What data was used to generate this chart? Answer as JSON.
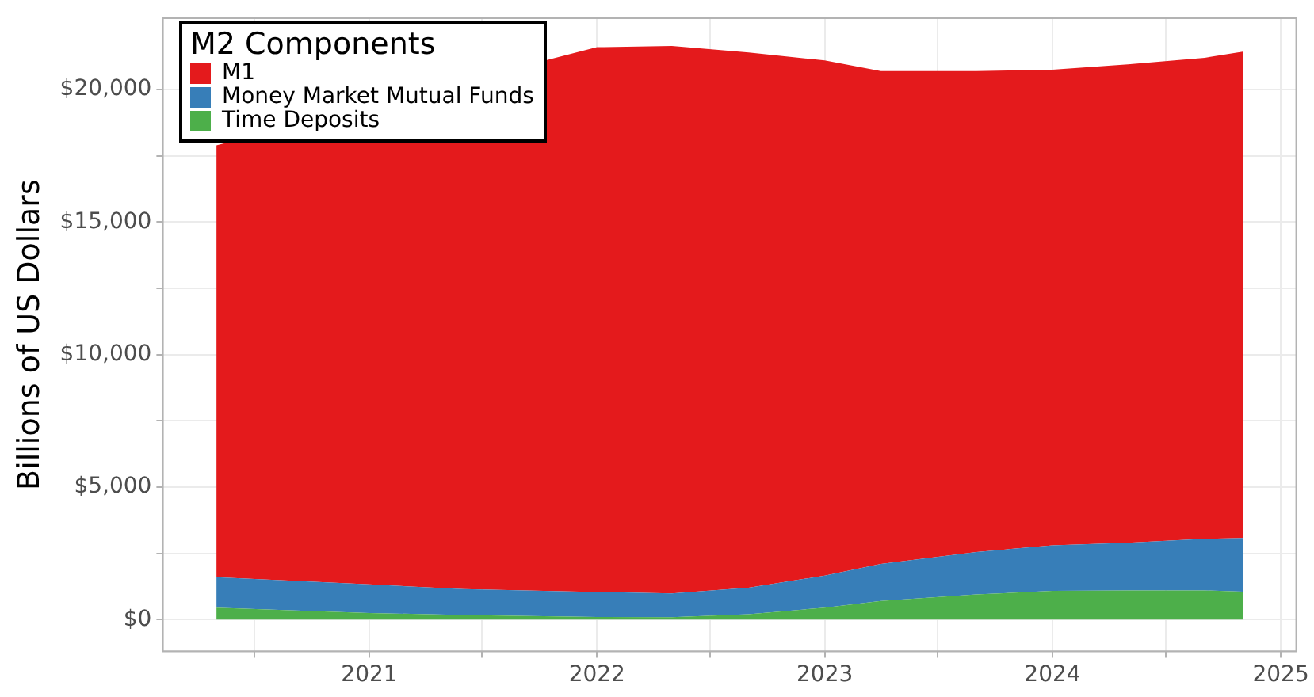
{
  "chart_data": {
    "type": "area",
    "stacked": true,
    "ylabel": "Billions of US Dollars",
    "legend_title": "M2 Components",
    "legend": "top left",
    "grid": true,
    "x": [
      "2020-05",
      "2021-01",
      "2021-06",
      "2022-01",
      "2022-05",
      "2022-09",
      "2023-01",
      "2023-04",
      "2023-09",
      "2024-01",
      "2024-05",
      "2024-09",
      "2024-11"
    ],
    "xlim": [
      "2020-02-05",
      "2025-01-26"
    ],
    "xticks": [
      {
        "value": "2020-07",
        "label": null
      },
      "2021",
      {
        "value": "2021-07",
        "label": null
      },
      "2022",
      {
        "value": "2022-07",
        "label": null
      },
      "2023",
      {
        "value": "2023-07",
        "label": null
      },
      "2024",
      {
        "value": "2024-07",
        "label": null
      },
      "2025"
    ],
    "ylim": [
      -1200,
      22700
    ],
    "yticks": [
      {
        "value": 0,
        "label": "$0"
      },
      {
        "value": 2500,
        "label": null
      },
      {
        "value": 5000,
        "label": "$5,000"
      },
      {
        "value": 7500,
        "label": null
      },
      {
        "value": 10000,
        "label": "$10,000"
      },
      {
        "value": 12500,
        "label": null
      },
      {
        "value": 15000,
        "label": "$15,000"
      },
      {
        "value": 17500,
        "label": null
      },
      {
        "value": 20000,
        "label": "$20,000"
      }
    ],
    "series": [
      {
        "name": "Time Deposits",
        "color": "#4daf4a",
        "values": [
          450,
          250,
          170,
          100,
          90,
          200,
          450,
          700,
          950,
          1080,
          1100,
          1100,
          1050
        ]
      },
      {
        "name": "Money Market Mutual Funds",
        "color": "#377eb8",
        "values": [
          1150,
          1080,
          980,
          940,
          900,
          1000,
          1210,
          1400,
          1600,
          1720,
          1800,
          1950,
          2030
        ]
      },
      {
        "name": "M1",
        "color": "#e41a1c",
        "values": [
          16300,
          null,
          null,
          20560,
          20660,
          20200,
          19440,
          18600,
          18150,
          17950,
          18050,
          18150,
          18350
        ]
      }
    ]
  }
}
